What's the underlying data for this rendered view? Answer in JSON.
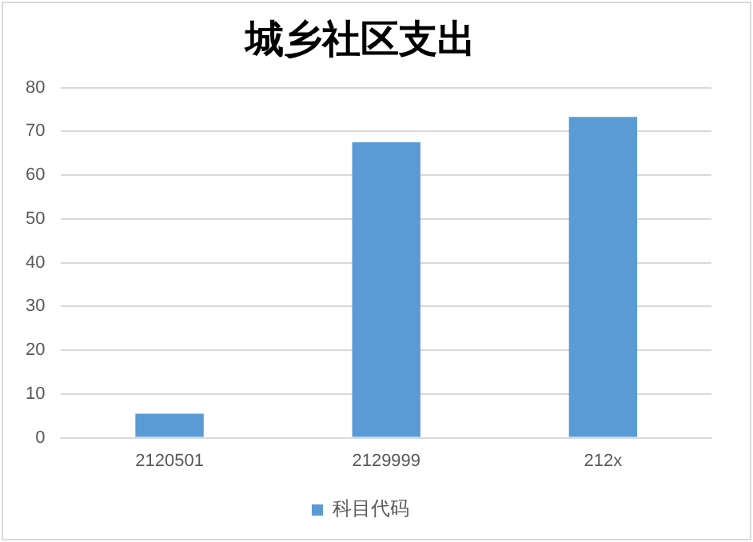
{
  "chart_data": {
    "type": "bar",
    "title": "城乡社区支出",
    "categories": [
      "2120501",
      "2129999",
      "212x"
    ],
    "series": [
      {
        "name": "科目代码",
        "color": "#5b9bd5",
        "values": [
          5.5,
          67.5,
          73.3
        ]
      }
    ],
    "ylim": [
      0,
      80
    ],
    "yticks": [
      0,
      10,
      20,
      30,
      40,
      50,
      60,
      70,
      80
    ],
    "grid": "y",
    "legend": "bottom"
  }
}
